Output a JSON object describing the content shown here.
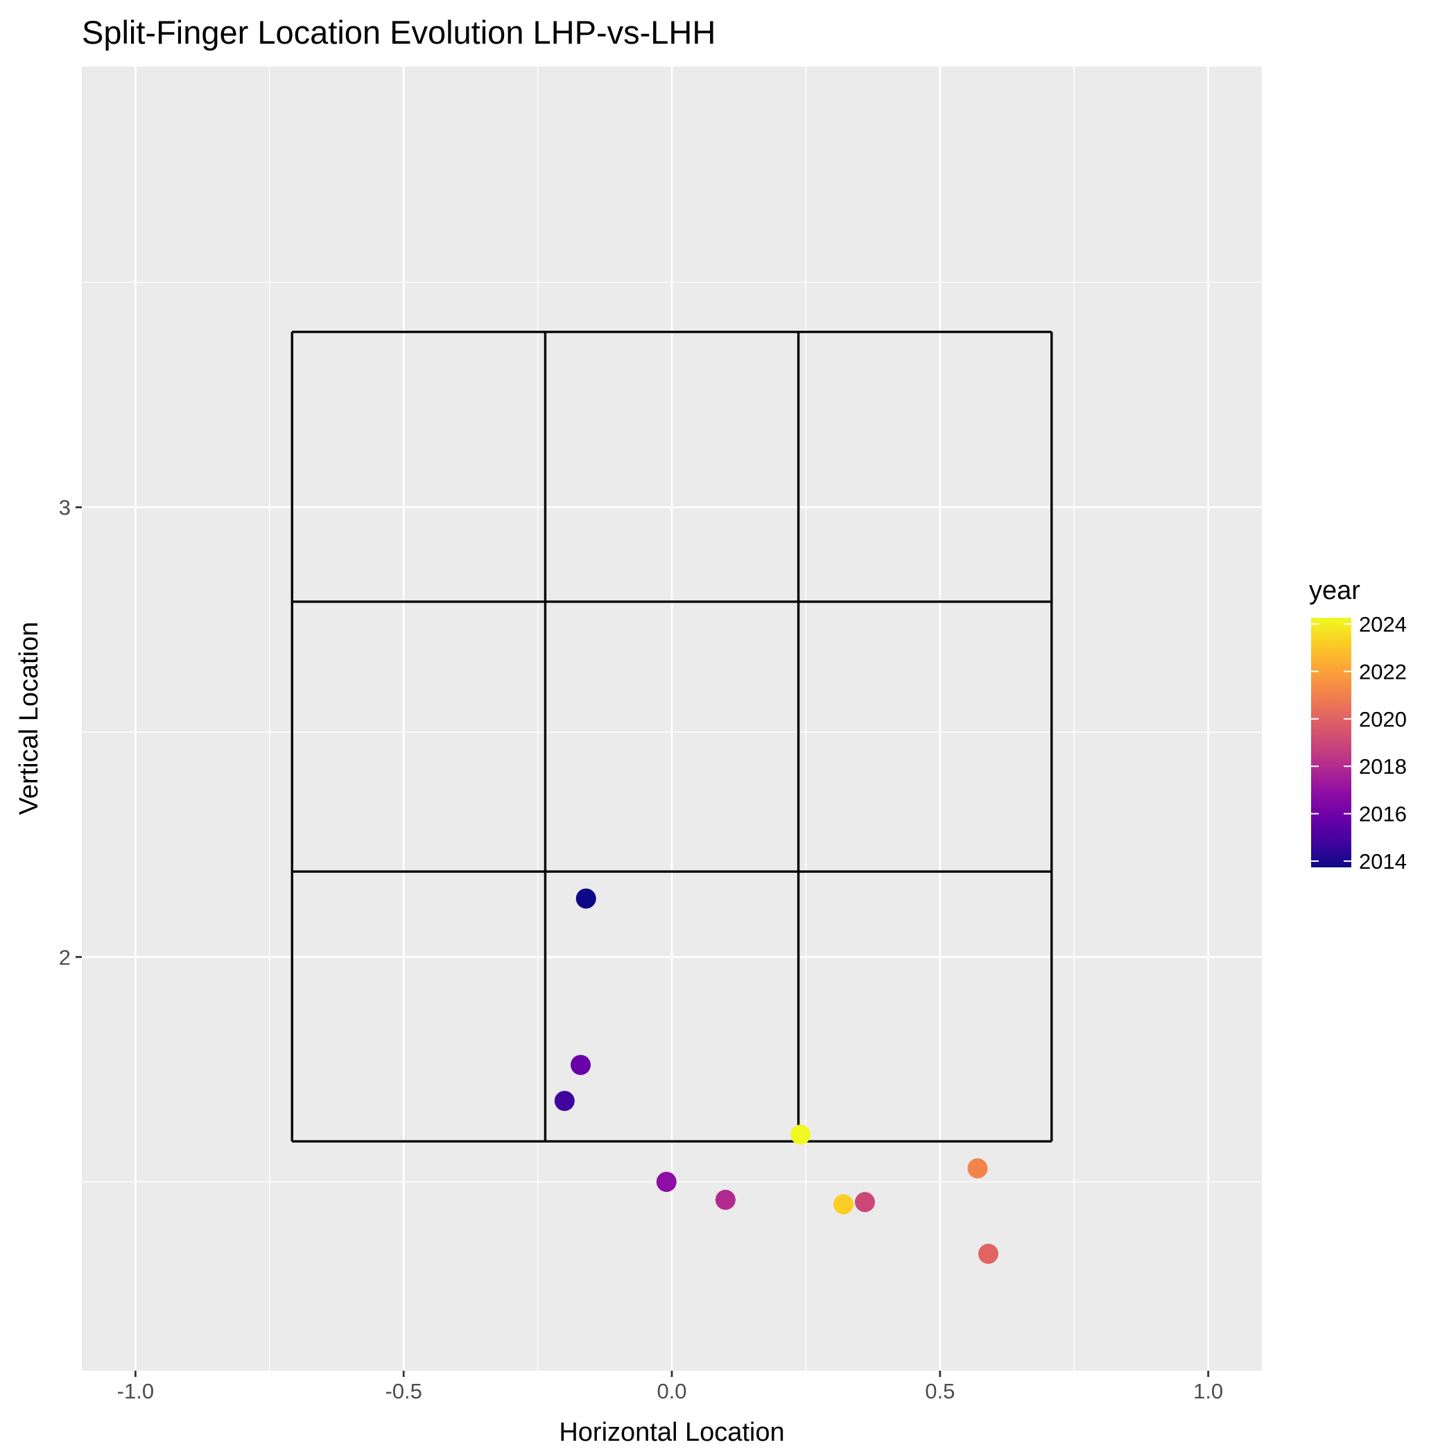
{
  "chart_data": {
    "type": "scatter",
    "title": "Split-Finger Location Evolution LHP-vs-LHH",
    "xlabel": "Horizontal Location",
    "ylabel": "Vertical Location",
    "xlim": [
      -1.1,
      1.1
    ],
    "ylim": [
      1.08,
      3.98
    ],
    "x_ticks": [
      -1.0,
      -0.5,
      0.0,
      0.5,
      1.0
    ],
    "x_tick_labels": [
      "-1.0",
      "-0.5",
      "0.0",
      "0.5",
      "1.0"
    ],
    "y_ticks": [
      2,
      3
    ],
    "y_tick_labels": [
      "2",
      "3"
    ],
    "grid": true,
    "strike_zone": {
      "x_edges": [
        -0.708,
        -0.236,
        0.236,
        0.708
      ],
      "y_edges": [
        1.59,
        2.19,
        2.79,
        3.39
      ]
    },
    "color_scale": {
      "name": "year",
      "palette": "plasma",
      "range": [
        2014,
        2024
      ],
      "ticks": [
        2014,
        2016,
        2018,
        2020,
        2022,
        2024
      ],
      "tick_labels": [
        "2014",
        "2016",
        "2018",
        "2020",
        "2022",
        "2024"
      ],
      "legend_position": "right"
    },
    "points": [
      {
        "year": 2014,
        "x": -0.16,
        "y": 2.13
      },
      {
        "year": 2015,
        "x": -0.2,
        "y": 1.68
      },
      {
        "year": 2016,
        "x": -0.17,
        "y": 1.76
      },
      {
        "year": 2017,
        "x": -0.01,
        "y": 1.5
      },
      {
        "year": 2018,
        "x": 0.1,
        "y": 1.46
      },
      {
        "year": 2019,
        "x": 0.36,
        "y": 1.455
      },
      {
        "year": 2020,
        "x": 0.59,
        "y": 1.34
      },
      {
        "year": 2021,
        "x": 0.57,
        "y": 1.53
      },
      {
        "year": 2023,
        "x": 0.32,
        "y": 1.45
      },
      {
        "year": 2024,
        "x": 0.24,
        "y": 1.605
      }
    ]
  }
}
